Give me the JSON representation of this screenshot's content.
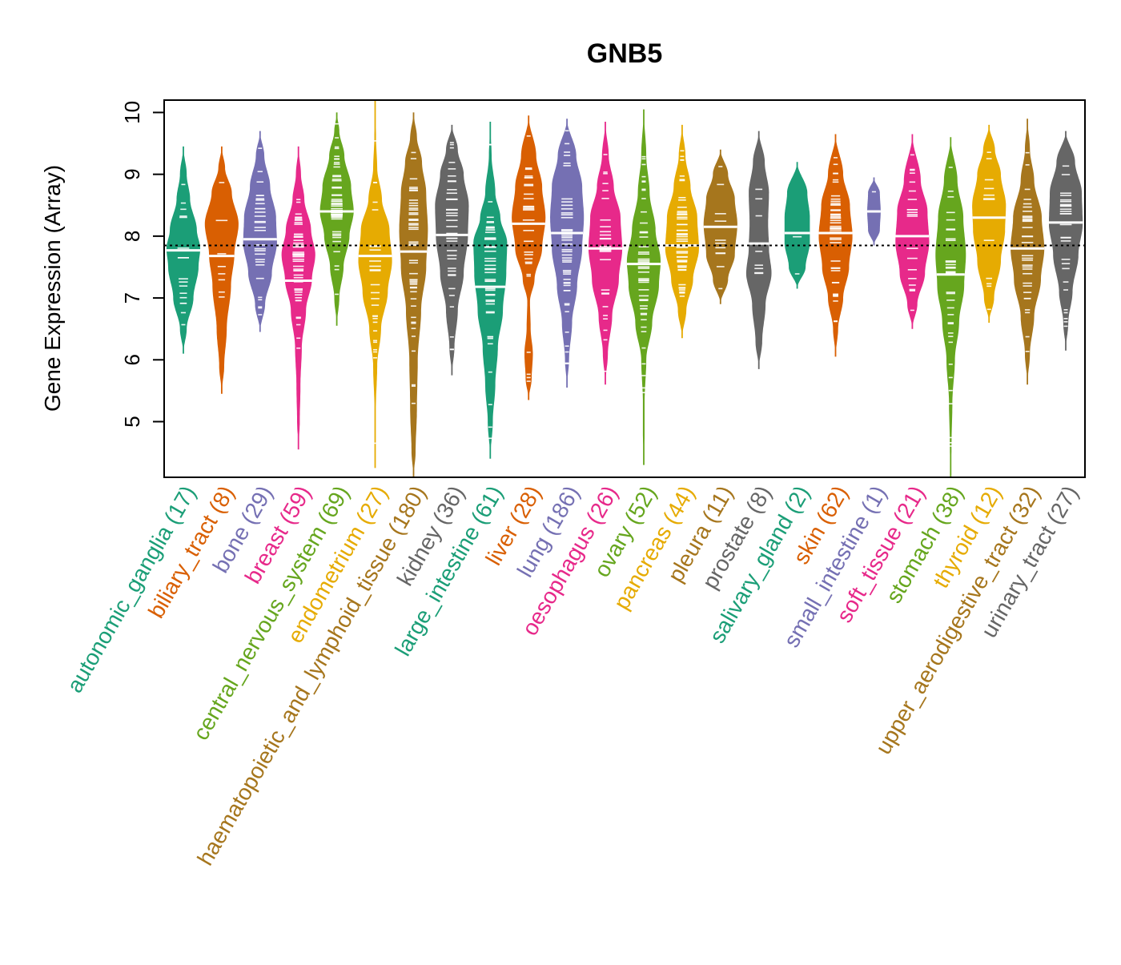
{
  "chart_data": {
    "type": "violin",
    "title": "GNB5",
    "xlabel": "",
    "ylabel": "Gene Expression (Array)",
    "ylim": [
      4.1,
      10.2
    ],
    "yticks": [
      5,
      6,
      7,
      8,
      9,
      10
    ],
    "reference_line": 7.85,
    "grid": false,
    "legend": "none",
    "categories": [
      {
        "label": "autonomic_ganglia (17)",
        "color": "#1B9E77",
        "median": 7.77,
        "min": 6.1,
        "max": 9.45,
        "shape": [
          [
            6.1,
            0
          ],
          [
            6.5,
            0.2
          ],
          [
            7.0,
            0.6
          ],
          [
            7.5,
            0.9
          ],
          [
            7.8,
            1
          ],
          [
            8.1,
            0.8
          ],
          [
            8.6,
            0.4
          ],
          [
            9.0,
            0.2
          ],
          [
            9.45,
            0
          ]
        ]
      },
      {
        "label": "biliary_tract (8)",
        "color": "#D95F02",
        "median": 7.68,
        "min": 5.45,
        "max": 9.45,
        "shape": [
          [
            5.45,
            0
          ],
          [
            5.9,
            0.15
          ],
          [
            6.5,
            0.3
          ],
          [
            7.2,
            0.55
          ],
          [
            7.7,
            0.75
          ],
          [
            8.2,
            1
          ],
          [
            8.7,
            0.6
          ],
          [
            9.1,
            0.2
          ],
          [
            9.45,
            0
          ]
        ]
      },
      {
        "label": "bone (29)",
        "color": "#7570B3",
        "median": 7.95,
        "min": 6.45,
        "max": 9.7,
        "shape": [
          [
            6.45,
            0
          ],
          [
            6.9,
            0.3
          ],
          [
            7.4,
            0.7
          ],
          [
            7.9,
            1
          ],
          [
            8.3,
            0.95
          ],
          [
            8.8,
            0.6
          ],
          [
            9.3,
            0.25
          ],
          [
            9.7,
            0
          ]
        ]
      },
      {
        "label": "breast (59)",
        "color": "#E7298A",
        "median": 7.28,
        "min": 4.55,
        "max": 9.45,
        "shape": [
          [
            4.55,
            0
          ],
          [
            5.0,
            0.08
          ],
          [
            5.6,
            0.12
          ],
          [
            6.2,
            0.2
          ],
          [
            6.8,
            0.45
          ],
          [
            7.3,
            0.8
          ],
          [
            7.7,
            1
          ],
          [
            8.1,
            0.75
          ],
          [
            8.6,
            0.35
          ],
          [
            9.0,
            0.15
          ],
          [
            9.45,
            0
          ]
        ]
      },
      {
        "label": "central_nervous_system (69)",
        "color": "#66A61E",
        "median": 8.4,
        "min": 6.55,
        "max": 10.0,
        "shape": [
          [
            6.55,
            0
          ],
          [
            7.0,
            0.15
          ],
          [
            7.5,
            0.4
          ],
          [
            8.0,
            0.75
          ],
          [
            8.4,
            1
          ],
          [
            8.8,
            0.85
          ],
          [
            9.3,
            0.45
          ],
          [
            9.7,
            0.15
          ],
          [
            10.0,
            0
          ]
        ]
      },
      {
        "label": "endometrium (27)",
        "color": "#E6AB02",
        "median": 7.68,
        "min": 4.25,
        "max": 10.2,
        "shape": [
          [
            4.25,
            0
          ],
          [
            4.6,
            0.04
          ],
          [
            5.2,
            0.04
          ],
          [
            5.9,
            0.12
          ],
          [
            6.5,
            0.35
          ],
          [
            7.1,
            0.75
          ],
          [
            7.6,
            1
          ],
          [
            8.1,
            0.85
          ],
          [
            8.6,
            0.4
          ],
          [
            9.1,
            0.12
          ],
          [
            9.6,
            0.05
          ],
          [
            10.2,
            0
          ]
        ]
      },
      {
        "label": "haematopoietic_and_lymphoid_tissue (180)",
        "color": "#A6761D",
        "median": 7.75,
        "min": 4.1,
        "max": 10.0,
        "shape": [
          [
            4.1,
            0
          ],
          [
            4.5,
            0.12
          ],
          [
            5.2,
            0.2
          ],
          [
            6.0,
            0.25
          ],
          [
            6.8,
            0.45
          ],
          [
            7.5,
            0.75
          ],
          [
            8.1,
            0.85
          ],
          [
            8.7,
            0.75
          ],
          [
            9.2,
            0.5
          ],
          [
            9.6,
            0.2
          ],
          [
            10.0,
            0
          ]
        ]
      },
      {
        "label": "kidney (36)",
        "color": "#666666",
        "median": 8.02,
        "min": 5.75,
        "max": 9.8,
        "shape": [
          [
            5.75,
            0
          ],
          [
            6.2,
            0.15
          ],
          [
            6.8,
            0.35
          ],
          [
            7.4,
            0.7
          ],
          [
            8.0,
            0.95
          ],
          [
            8.5,
            1
          ],
          [
            9.0,
            0.7
          ],
          [
            9.4,
            0.35
          ],
          [
            9.8,
            0
          ]
        ]
      },
      {
        "label": "large_intestine (61)",
        "color": "#1B9E77",
        "median": 7.18,
        "min": 4.4,
        "max": 9.85,
        "shape": [
          [
            4.4,
            0
          ],
          [
            5.0,
            0.15
          ],
          [
            5.6,
            0.3
          ],
          [
            6.2,
            0.45
          ],
          [
            6.8,
            0.75
          ],
          [
            7.4,
            0.95
          ],
          [
            7.9,
            1
          ],
          [
            8.3,
            0.6
          ],
          [
            8.7,
            0.3
          ],
          [
            9.3,
            0.08
          ],
          [
            9.85,
            0
          ]
        ]
      },
      {
        "label": "liver (28)",
        "color": "#D95F02",
        "median": 8.2,
        "min": 5.35,
        "max": 9.95,
        "shape": [
          [
            5.35,
            0
          ],
          [
            5.7,
            0.18
          ],
          [
            6.1,
            0.25
          ],
          [
            6.5,
            0.12
          ],
          [
            6.95,
            0.08
          ],
          [
            7.3,
            0.35
          ],
          [
            7.8,
            0.8
          ],
          [
            8.3,
            1
          ],
          [
            8.8,
            0.8
          ],
          [
            9.3,
            0.45
          ],
          [
            9.95,
            0
          ]
        ]
      },
      {
        "label": "lung (186)",
        "color": "#7570B3",
        "median": 8.05,
        "min": 5.55,
        "max": 9.9,
        "shape": [
          [
            5.55,
            0
          ],
          [
            6.0,
            0.12
          ],
          [
            6.6,
            0.3
          ],
          [
            7.2,
            0.6
          ],
          [
            7.8,
            0.9
          ],
          [
            8.3,
            1
          ],
          [
            8.8,
            0.9
          ],
          [
            9.3,
            0.55
          ],
          [
            9.9,
            0
          ]
        ]
      },
      {
        "label": "oesophagus (26)",
        "color": "#E7298A",
        "median": 7.8,
        "min": 5.6,
        "max": 9.85,
        "shape": [
          [
            5.6,
            0
          ],
          [
            6.1,
            0.15
          ],
          [
            6.7,
            0.4
          ],
          [
            7.3,
            0.8
          ],
          [
            7.8,
            1
          ],
          [
            8.3,
            0.9
          ],
          [
            8.8,
            0.5
          ],
          [
            9.3,
            0.2
          ],
          [
            9.85,
            0
          ]
        ]
      },
      {
        "label": "ovary (52)",
        "color": "#66A61E",
        "median": 7.55,
        "min": 4.3,
        "max": 10.05,
        "shape": [
          [
            4.3,
            0
          ],
          [
            4.8,
            0.05
          ],
          [
            5.3,
            0.05
          ],
          [
            6.0,
            0.15
          ],
          [
            6.6,
            0.5
          ],
          [
            7.2,
            0.9
          ],
          [
            7.6,
            1
          ],
          [
            8.1,
            0.7
          ],
          [
            8.7,
            0.35
          ],
          [
            9.3,
            0.15
          ],
          [
            10.05,
            0
          ]
        ]
      },
      {
        "label": "pancreas (44)",
        "color": "#E6AB02",
        "median": 7.85,
        "min": 6.35,
        "max": 9.8,
        "shape": [
          [
            6.35,
            0
          ],
          [
            6.8,
            0.25
          ],
          [
            7.3,
            0.65
          ],
          [
            7.8,
            1
          ],
          [
            8.3,
            0.9
          ],
          [
            8.8,
            0.5
          ],
          [
            9.3,
            0.2
          ],
          [
            9.8,
            0
          ]
        ]
      },
      {
        "label": "pleura (11)",
        "color": "#A6761D",
        "median": 8.15,
        "min": 6.9,
        "max": 9.4,
        "shape": [
          [
            6.9,
            0
          ],
          [
            7.3,
            0.45
          ],
          [
            7.7,
            0.85
          ],
          [
            8.2,
            1
          ],
          [
            8.6,
            0.85
          ],
          [
            9.0,
            0.45
          ],
          [
            9.4,
            0
          ]
        ]
      },
      {
        "label": "prostate (8)",
        "color": "#666666",
        "median": 7.88,
        "min": 5.85,
        "max": 9.7,
        "shape": [
          [
            5.85,
            0
          ],
          [
            6.3,
            0.2
          ],
          [
            6.9,
            0.4
          ],
          [
            7.4,
            0.75
          ],
          [
            7.8,
            0.6
          ],
          [
            8.2,
            0.55
          ],
          [
            8.7,
            0.6
          ],
          [
            9.2,
            0.35
          ],
          [
            9.7,
            0
          ]
        ]
      },
      {
        "label": "salivary_gland (2)",
        "color": "#1B9E77",
        "median": 8.05,
        "min": 7.15,
        "max": 9.2,
        "shape": [
          [
            7.15,
            0
          ],
          [
            7.5,
            0.5
          ],
          [
            7.9,
            0.75
          ],
          [
            8.3,
            0.75
          ],
          [
            8.7,
            0.6
          ],
          [
            9.2,
            0
          ]
        ]
      },
      {
        "label": "skin (62)",
        "color": "#D95F02",
        "median": 8.05,
        "min": 6.05,
        "max": 9.65,
        "shape": [
          [
            6.05,
            0
          ],
          [
            6.5,
            0.15
          ],
          [
            7.0,
            0.45
          ],
          [
            7.5,
            0.8
          ],
          [
            8.0,
            1
          ],
          [
            8.5,
            0.85
          ],
          [
            9.0,
            0.45
          ],
          [
            9.65,
            0
          ]
        ]
      },
      {
        "label": "small_intestine (1)",
        "color": "#7570B3",
        "median": 8.4,
        "min": 7.85,
        "max": 8.95,
        "shape": [
          [
            7.85,
            0
          ],
          [
            8.1,
            0.35
          ],
          [
            8.4,
            0.4
          ],
          [
            8.7,
            0.35
          ],
          [
            8.95,
            0
          ]
        ]
      },
      {
        "label": "soft_tissue (21)",
        "color": "#E7298A",
        "median": 8.0,
        "min": 6.5,
        "max": 9.65,
        "shape": [
          [
            6.5,
            0
          ],
          [
            6.9,
            0.3
          ],
          [
            7.4,
            0.75
          ],
          [
            7.9,
            1
          ],
          [
            8.4,
            0.9
          ],
          [
            8.9,
            0.5
          ],
          [
            9.65,
            0
          ]
        ]
      },
      {
        "label": "stomach (38)",
        "color": "#66A61E",
        "median": 7.38,
        "min": 4.1,
        "max": 9.6,
        "shape": [
          [
            4.1,
            0
          ],
          [
            4.6,
            0.05
          ],
          [
            5.3,
            0.1
          ],
          [
            6.0,
            0.25
          ],
          [
            6.6,
            0.5
          ],
          [
            7.2,
            0.8
          ],
          [
            7.7,
            0.9
          ],
          [
            8.3,
            0.75
          ],
          [
            8.9,
            0.4
          ],
          [
            9.6,
            0
          ]
        ]
      },
      {
        "label": "thyroid (12)",
        "color": "#E6AB02",
        "median": 8.3,
        "min": 6.6,
        "max": 9.8,
        "shape": [
          [
            6.6,
            0
          ],
          [
            7.0,
            0.3
          ],
          [
            7.6,
            0.7
          ],
          [
            8.1,
            0.95
          ],
          [
            8.5,
            1
          ],
          [
            9.0,
            0.7
          ],
          [
            9.4,
            0.35
          ],
          [
            9.8,
            0
          ]
        ]
      },
      {
        "label": "upper_aerodigestive_tract (32)",
        "color": "#A6761D",
        "median": 7.8,
        "min": 5.6,
        "max": 9.9,
        "shape": [
          [
            5.6,
            0
          ],
          [
            6.1,
            0.15
          ],
          [
            6.7,
            0.4
          ],
          [
            7.3,
            0.8
          ],
          [
            7.8,
            1
          ],
          [
            8.3,
            0.85
          ],
          [
            8.9,
            0.4
          ],
          [
            9.4,
            0.15
          ],
          [
            9.9,
            0
          ]
        ]
      },
      {
        "label": "urinary_tract (27)",
        "color": "#666666",
        "median": 8.22,
        "min": 6.15,
        "max": 9.7,
        "shape": [
          [
            6.15,
            0
          ],
          [
            6.6,
            0.15
          ],
          [
            7.1,
            0.4
          ],
          [
            7.7,
            0.75
          ],
          [
            8.2,
            1
          ],
          [
            8.7,
            0.95
          ],
          [
            9.2,
            0.55
          ],
          [
            9.7,
            0
          ]
        ]
      }
    ]
  }
}
